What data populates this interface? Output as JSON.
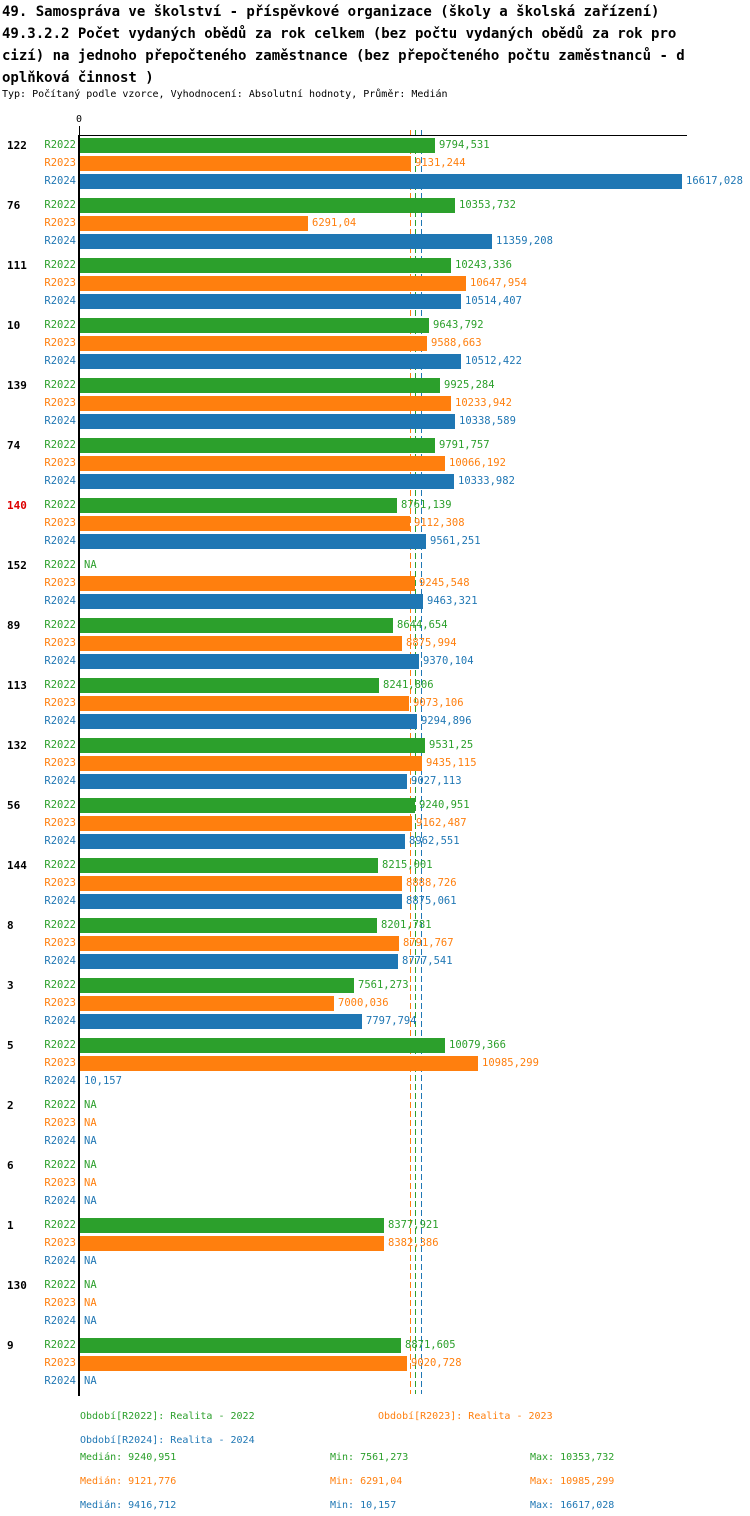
{
  "header": {
    "title_lines": [
      "49. Samospráva ve školství - příspěvkové organizace (školy a školská zařízení)",
      "49.3.2.2 Počet vydaných obědů za rok celkem (bez počtu vydaných obědů za rok pro",
      "cizí) na jednoho přepočteného zaměstnance (bez přepočteného počtu zaměstnanců - d",
      "oplňková činnost )"
    ],
    "subtitle": "Typ: Počítaný podle vzorce, Vyhodnocení: Absolutní hodnoty, Průměr: Medián"
  },
  "chart_data": {
    "type": "bar",
    "orientation": "horizontal",
    "axis": {
      "origin_label": "0",
      "xlim": [
        0,
        16617.028
      ]
    },
    "series_labels": [
      "R2022",
      "R2023",
      "R2024"
    ],
    "colors": {
      "R2022": "#2ca02c",
      "R2023": "#ff7f0e",
      "R2024": "#1f77b4"
    },
    "highlight_color": "#dd0000",
    "median_lines": [
      {
        "series": "R2022",
        "value": 9240.951
      },
      {
        "series": "R2023",
        "value": 9121.776
      },
      {
        "series": "R2024",
        "value": 9416.712
      }
    ],
    "groups": [
      {
        "label": "122",
        "highlight": false,
        "rows": [
          {
            "text": "9794,531",
            "value": 9794.531
          },
          {
            "text": "9131,244",
            "value": 9131.244
          },
          {
            "text": "16617,028",
            "value": 16617.028
          }
        ]
      },
      {
        "label": "76",
        "highlight": false,
        "rows": [
          {
            "text": "10353,732",
            "value": 10353.732
          },
          {
            "text": "6291,04",
            "value": 6291.04
          },
          {
            "text": "11359,208",
            "value": 11359.208
          }
        ]
      },
      {
        "label": "111",
        "highlight": false,
        "rows": [
          {
            "text": "10243,336",
            "value": 10243.336
          },
          {
            "text": "10647,954",
            "value": 10647.954
          },
          {
            "text": "10514,407",
            "value": 10514.407
          }
        ]
      },
      {
        "label": "10",
        "highlight": false,
        "rows": [
          {
            "text": "9643,792",
            "value": 9643.792
          },
          {
            "text": "9588,663",
            "value": 9588.663
          },
          {
            "text": "10512,422",
            "value": 10512.422
          }
        ]
      },
      {
        "label": "139",
        "highlight": false,
        "rows": [
          {
            "text": "9925,284",
            "value": 9925.284
          },
          {
            "text": "10233,942",
            "value": 10233.942
          },
          {
            "text": "10338,589",
            "value": 10338.589
          }
        ]
      },
      {
        "label": "74",
        "highlight": false,
        "rows": [
          {
            "text": "9791,757",
            "value": 9791.757
          },
          {
            "text": "10066,192",
            "value": 10066.192
          },
          {
            "text": "10333,982",
            "value": 10333.982
          }
        ]
      },
      {
        "label": "140",
        "highlight": true,
        "rows": [
          {
            "text": "8761,139",
            "value": 8761.139
          },
          {
            "text": "9112,308",
            "value": 9112.308
          },
          {
            "text": "9561,251",
            "value": 9561.251
          }
        ]
      },
      {
        "label": "152",
        "highlight": false,
        "rows": [
          {
            "text": "NA",
            "value": null
          },
          {
            "text": "9245,548",
            "value": 9245.548
          },
          {
            "text": "9463,321",
            "value": 9463.321
          }
        ]
      },
      {
        "label": "89",
        "highlight": false,
        "rows": [
          {
            "text": "8644,654",
            "value": 8644.654
          },
          {
            "text": "8875,994",
            "value": 8875.994
          },
          {
            "text": "9370,104",
            "value": 9370.104
          }
        ]
      },
      {
        "label": "113",
        "highlight": false,
        "rows": [
          {
            "text": "8241,806",
            "value": 8241.806
          },
          {
            "text": "9073,106",
            "value": 9073.106
          },
          {
            "text": "9294,896",
            "value": 9294.896
          }
        ]
      },
      {
        "label": "132",
        "highlight": false,
        "rows": [
          {
            "text": "9531,25",
            "value": 9531.25
          },
          {
            "text": "9435,115",
            "value": 9435.115
          },
          {
            "text": "9027,113",
            "value": 9027.113
          }
        ]
      },
      {
        "label": "56",
        "highlight": false,
        "rows": [
          {
            "text": "9240,951",
            "value": 9240.951
          },
          {
            "text": "9162,487",
            "value": 9162.487
          },
          {
            "text": "8962,551",
            "value": 8962.551
          }
        ]
      },
      {
        "label": "144",
        "highlight": false,
        "rows": [
          {
            "text": "8215,001",
            "value": 8215.001
          },
          {
            "text": "8888,726",
            "value": 8888.726
          },
          {
            "text": "8875,061",
            "value": 8875.061
          }
        ]
      },
      {
        "label": "8",
        "highlight": false,
        "rows": [
          {
            "text": "8201,781",
            "value": 8201.781
          },
          {
            "text": "8791,767",
            "value": 8791.767
          },
          {
            "text": "8777,541",
            "value": 8777.541
          }
        ]
      },
      {
        "label": "3",
        "highlight": false,
        "rows": [
          {
            "text": "7561,273",
            "value": 7561.273
          },
          {
            "text": "7000,036",
            "value": 7000.036
          },
          {
            "text": "7797,794",
            "value": 7797.794
          }
        ]
      },
      {
        "label": "5",
        "highlight": false,
        "rows": [
          {
            "text": "10079,366",
            "value": 10079.366
          },
          {
            "text": "10985,299",
            "value": 10985.299
          },
          {
            "text": "10,157",
            "value": 10.157
          }
        ]
      },
      {
        "label": "2",
        "highlight": false,
        "rows": [
          {
            "text": "NA",
            "value": null
          },
          {
            "text": "NA",
            "value": null
          },
          {
            "text": "NA",
            "value": null
          }
        ]
      },
      {
        "label": "6",
        "highlight": false,
        "rows": [
          {
            "text": "NA",
            "value": null
          },
          {
            "text": "NA",
            "value": null
          },
          {
            "text": "NA",
            "value": null
          }
        ]
      },
      {
        "label": "1",
        "highlight": false,
        "rows": [
          {
            "text": "8377,921",
            "value": 8377.921
          },
          {
            "text": "8382,386",
            "value": 8382.386
          },
          {
            "text": "NA",
            "value": null
          }
        ]
      },
      {
        "label": "130",
        "highlight": false,
        "rows": [
          {
            "text": "NA",
            "value": null
          },
          {
            "text": "NA",
            "value": null
          },
          {
            "text": "NA",
            "value": null
          }
        ]
      },
      {
        "label": "9",
        "highlight": false,
        "rows": [
          {
            "text": "8871,605",
            "value": 8871.605
          },
          {
            "text": "9020,728",
            "value": 9020.728
          },
          {
            "text": "NA",
            "value": null
          }
        ]
      }
    ]
  },
  "footer": {
    "legend": [
      {
        "series": "R2022",
        "text": "Období[R2022]: Realita - 2022"
      },
      {
        "series": "R2023",
        "text": "Období[R2023]: Realita - 2023"
      },
      {
        "series": "R2024",
        "text": "Období[R2024]: Realita - 2024"
      }
    ],
    "stats_rows": [
      {
        "series": "R2022",
        "median": "Medián: 9240,951",
        "min": "Min: 7561,273",
        "max": "Max: 10353,732"
      },
      {
        "series": "R2023",
        "median": "Medián: 9121,776",
        "min": "Min: 6291,04",
        "max": "Max: 10985,299"
      },
      {
        "series": "R2024",
        "median": "Medián: 9416,712",
        "min": "Min: 10,157",
        "max": "Max: 16617,028"
      }
    ]
  }
}
